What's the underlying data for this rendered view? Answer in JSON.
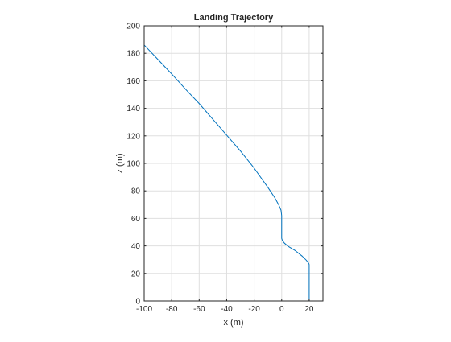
{
  "chart_data": {
    "type": "line",
    "title": "Landing Trajectory",
    "xlabel": "x (m)",
    "ylabel": "z (m)",
    "xlim": [
      -100,
      30
    ],
    "ylim": [
      0,
      200
    ],
    "xticks": [
      -100,
      -80,
      -60,
      -40,
      -20,
      0,
      20
    ],
    "yticks": [
      0,
      20,
      40,
      60,
      80,
      100,
      120,
      140,
      160,
      180,
      200
    ],
    "grid": true,
    "series": [
      {
        "color": "#0072bd",
        "x": [
          -100,
          -90,
          -80,
          -70,
          -60,
          -50,
          -40,
          -30,
          -20,
          -10,
          -5,
          -2,
          -0.5,
          0,
          0,
          0,
          0,
          0.5,
          2,
          5,
          10,
          15,
          18,
          19.5,
          20,
          20,
          20
        ],
        "z": [
          186,
          175.5,
          165,
          154,
          143.5,
          132,
          120.5,
          109,
          96.5,
          82.5,
          75,
          69.5,
          66,
          62,
          55,
          48,
          45.5,
          44,
          42,
          39.5,
          36.5,
          32.5,
          29.5,
          27.5,
          26.5,
          10,
          0
        ]
      }
    ]
  }
}
